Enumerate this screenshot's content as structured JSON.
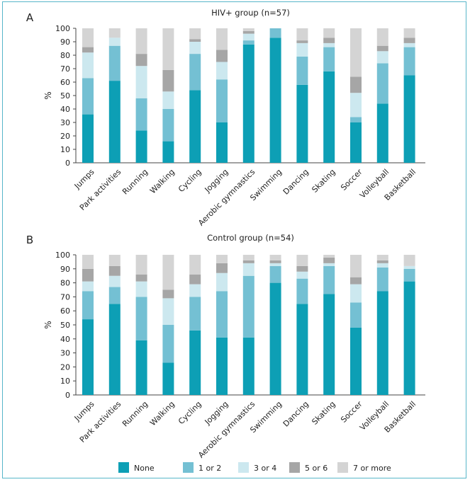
{
  "chart_data": [
    {
      "type": "bar",
      "stacked": true,
      "panel_label": "A",
      "title": "HIV+ group (n=57)",
      "ylabel": "%",
      "ylim": [
        0,
        100
      ],
      "yticks": [
        0,
        10,
        20,
        30,
        40,
        50,
        60,
        70,
        80,
        90,
        100
      ],
      "categories": [
        "Jumps",
        "Park activities",
        "Running",
        "Walking",
        "Cycling",
        "Jogging",
        "Aerobic gymnastics",
        "Swimming",
        "Dancing",
        "Skating",
        "Soccer",
        "Volleyball",
        "Basketball"
      ],
      "series": [
        {
          "name": "None",
          "values": [
            36,
            61,
            24,
            16,
            54,
            30,
            88,
            93,
            58,
            68,
            30,
            44,
            65
          ]
        },
        {
          "name": "1 or 2",
          "values": [
            27,
            26,
            24,
            24,
            27,
            32,
            3,
            7,
            21,
            18,
            4,
            30,
            21
          ]
        },
        {
          "name": "3 or 4",
          "values": [
            19,
            6,
            24,
            13,
            9,
            13,
            5,
            0,
            10,
            3,
            18,
            9,
            3
          ]
        },
        {
          "name": "5 or 6",
          "values": [
            4,
            0,
            9,
            16,
            2,
            9,
            2,
            0,
            2,
            4,
            12,
            4,
            4
          ]
        },
        {
          "name": "7 or more",
          "values": [
            14,
            7,
            19,
            31,
            8,
            16,
            2,
            0,
            9,
            7,
            36,
            13,
            7
          ]
        }
      ]
    },
    {
      "type": "bar",
      "stacked": true,
      "panel_label": "B",
      "title": "Control group (n=54)",
      "ylabel": "%",
      "ylim": [
        0,
        100
      ],
      "yticks": [
        0,
        10,
        20,
        30,
        40,
        50,
        60,
        70,
        80,
        90,
        100
      ],
      "categories": [
        "Jumps",
        "Park activities",
        "Running",
        "Walking",
        "Cycling",
        "Jogging",
        "Aerobic gymnastics",
        "Swimming",
        "Dancing",
        "Skating",
        "Soccer",
        "Volleyball",
        "Basketball"
      ],
      "series": [
        {
          "name": "None",
          "values": [
            54,
            65,
            39,
            23,
            46,
            41,
            41,
            80,
            65,
            72,
            48,
            74,
            81
          ]
        },
        {
          "name": "1 or 2",
          "values": [
            20,
            12,
            31,
            27,
            24,
            33,
            44,
            12,
            18,
            20,
            18,
            17,
            9
          ]
        },
        {
          "name": "3 or 4",
          "values": [
            7,
            8,
            11,
            19,
            9,
            13,
            9,
            2,
            5,
            2,
            13,
            3,
            2
          ]
        },
        {
          "name": "5 or 6",
          "values": [
            9,
            7,
            5,
            6,
            7,
            7,
            2,
            2,
            4,
            4,
            5,
            2,
            0
          ]
        },
        {
          "name": "7 or more",
          "values": [
            10,
            8,
            14,
            25,
            14,
            6,
            4,
            4,
            8,
            2,
            16,
            4,
            8
          ]
        }
      ]
    }
  ],
  "legend": [
    {
      "label": "None",
      "color": "#0d9fb5"
    },
    {
      "label": "1 or 2",
      "color": "#74c0d3"
    },
    {
      "label": "3 or 4",
      "color": "#cce8ef"
    },
    {
      "label": "5 or 6",
      "color": "#a6a6a6"
    },
    {
      "label": "7 or more",
      "color": "#d4d4d4"
    }
  ],
  "colors": {
    "frame_border": "#57b6c9",
    "axis": "#444444"
  }
}
